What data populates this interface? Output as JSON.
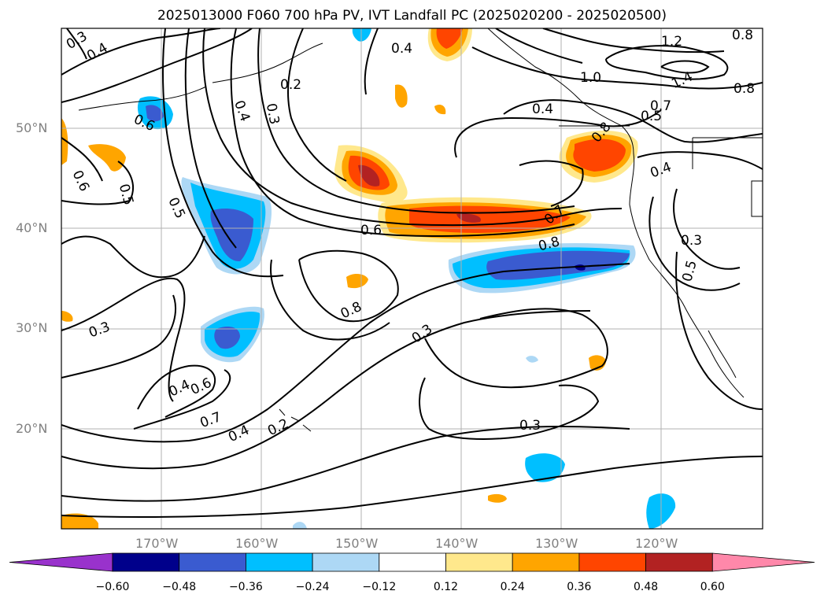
{
  "title": "2025013000 F060 700 hPa PV, IVT Landfall PC (2025020200 - 2025020500)",
  "lat_labels": [
    "50°N",
    "40°N",
    "30°N",
    "20°N"
  ],
  "lon_labels": [
    "170°W",
    "160°W",
    "150°W",
    "140°W",
    "130°W",
    "120°W"
  ],
  "contour_labels": [
    "0.3",
    "0.4",
    "0.4",
    "0.2",
    "0.4",
    "0.3",
    "0.6",
    "0.6",
    "0.5",
    "0.5",
    "0.6",
    "0.8",
    "0.3",
    "0.4",
    "0.6",
    "0.7",
    "0.4",
    "0.2",
    "0.3",
    "0.3",
    "0.7",
    "0.8",
    "1.0",
    "1.2",
    "1.4",
    "0.8",
    "0.4",
    "0.5",
    "0.7",
    "0.4",
    "0.3",
    "0.5",
    "0.8",
    "0.8"
  ],
  "colorbar": {
    "ticks": [
      "−0.60",
      "−0.48",
      "−0.36",
      "−0.24",
      "−0.12",
      "0.12",
      "0.24",
      "0.36",
      "0.48",
      "0.60"
    ],
    "colors": [
      "#9932cc",
      "#00008b",
      "#3a5bd0",
      "#00bfff",
      "#add8f5",
      "#ffffff",
      "#ffe88c",
      "#ffa500",
      "#ff4500",
      "#b22222",
      "#ff88aa"
    ]
  }
}
